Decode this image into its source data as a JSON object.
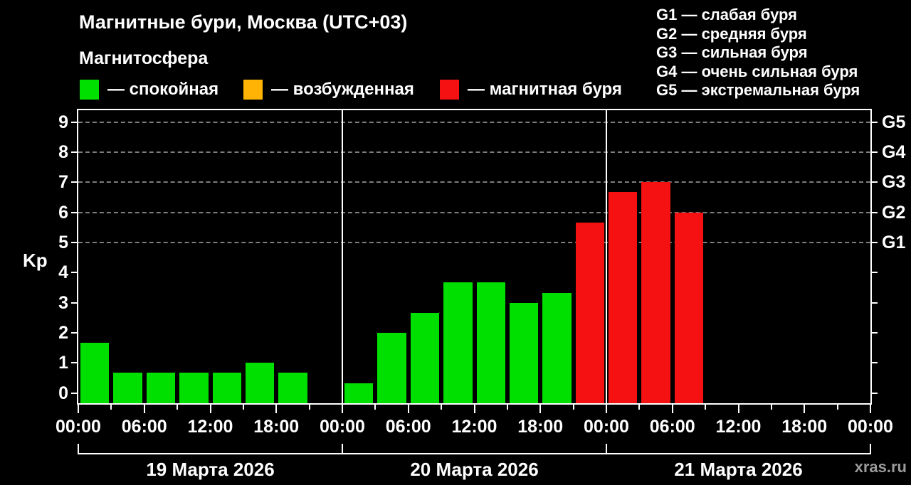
{
  "title": "Магнитные бури, Москва (UTC+03)",
  "subtitle": "Магнитосфера",
  "legend": [
    {
      "label": "— спокойная",
      "color": "#00e000"
    },
    {
      "label": "— возбужденная",
      "color": "#ffb405"
    },
    {
      "label": "— магнитная буря",
      "color": "#f51111"
    }
  ],
  "storm_scale": [
    "G1 — слабая буря",
    "G2 — средняя буря",
    "G3 — сильная буря",
    "G4 — очень сильная буря",
    "G5 — экстремальная буря"
  ],
  "watermark": "xras.ru",
  "chart_data": {
    "type": "bar",
    "title": "Магнитные бури, Москва (UTC+03)",
    "ylabel": "Kp",
    "ylim": [
      0,
      9
    ],
    "yticks": [
      0,
      1,
      2,
      3,
      4,
      5,
      6,
      7,
      8,
      9
    ],
    "bar_interval_hours": 3,
    "x_tick_labels": [
      "00:00",
      "06:00",
      "12:00",
      "18:00"
    ],
    "right_axis": [
      {
        "kp": 5,
        "label": "G1"
      },
      {
        "kp": 6,
        "label": "G2"
      },
      {
        "kp": 7,
        "label": "G3"
      },
      {
        "kp": 8,
        "label": "G4"
      },
      {
        "kp": 9,
        "label": "G5"
      }
    ],
    "colors": {
      "quiet": "#00e000",
      "excited": "#ffb405",
      "storm": "#f51111"
    },
    "color_rules": {
      "excited_min_kp": 4,
      "storm_min_kp": 5
    },
    "grid": "dashed horizontal lines at G1–G5 levels",
    "legend_position": "top",
    "days": [
      {
        "date": "19 Марта 2026",
        "values": [
          1.67,
          0.67,
          0.67,
          0.67,
          0.67,
          1.0,
          0.67,
          null
        ]
      },
      {
        "date": "20 Марта 2026",
        "values": [
          0.33,
          2.0,
          2.67,
          3.67,
          3.67,
          3.0,
          3.33,
          5.67
        ]
      },
      {
        "date": "21 Марта 2026",
        "values": [
          6.67,
          7.0,
          6.0,
          null,
          null,
          null,
          null,
          null
        ]
      }
    ]
  }
}
